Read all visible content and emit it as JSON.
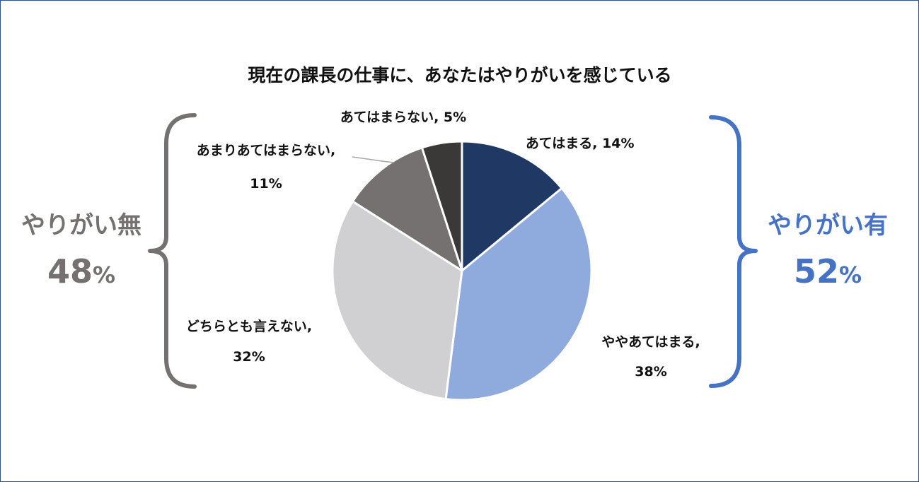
{
  "chart_data": {
    "type": "pie",
    "title": "現在の課長の仕事に、あなたはやりがいを感じている",
    "start_angle_deg": 0,
    "direction": "clockwise",
    "slices": [
      {
        "name": "あてはまる",
        "label_line1": "あてはまる, 14%",
        "label_line2": "",
        "value": 14,
        "color": "#1f3864"
      },
      {
        "name": "ややあてはまる",
        "label_line1": "ややあてはまる,",
        "label_line2": "38%",
        "value": 38,
        "color": "#8faadc"
      },
      {
        "name": "どちらとも言えない",
        "label_line1": "どちらとも言えない,",
        "label_line2": "32%",
        "value": 32,
        "color": "#d0cfd1"
      },
      {
        "name": "あまりあてはまらない",
        "label_line1": "あまりあてはまらない,",
        "label_line2": "11%",
        "value": 11,
        "color": "#757171"
      },
      {
        "name": "あてはまらない",
        "label_line1": "あてはまらない, 5%",
        "label_line2": "",
        "value": 5,
        "color": "#3b3838"
      }
    ],
    "groups": [
      {
        "label": "やりがい無",
        "value": "48",
        "unit": "%",
        "color": "#767171"
      },
      {
        "label": "やりがい有",
        "value": "52",
        "unit": "%",
        "color": "#4472c4"
      }
    ]
  }
}
